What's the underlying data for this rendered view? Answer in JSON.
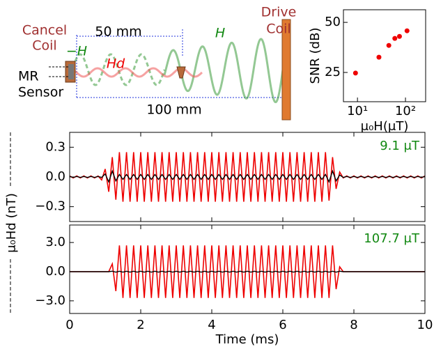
{
  "diagram": {
    "cancel_coil": [
      "Cancel",
      "Coil"
    ],
    "drive_coil": [
      "Drive",
      "Coil"
    ],
    "mr_sensor": [
      "MR",
      "Sensor"
    ],
    "short_distance": "50 mm",
    "long_distance": "100 mm",
    "cancel_field": "−H",
    "detected_field": "Hd",
    "drive_field": "H"
  },
  "shared_ylabel": "μ₀Hd (nT)",
  "chart_data": [
    {
      "type": "scatter",
      "xlabel": "μ₀H(μT)",
      "ylabel": "SNR (dB)",
      "xscale": "log",
      "color": "#ee0000",
      "x": [
        9.1,
        28,
        45,
        60,
        75,
        107.7
      ],
      "values": [
        24.7,
        32.6,
        38.5,
        42,
        43,
        45.8
      ],
      "xlim": [
        5.1,
        263
      ],
      "xticks": [
        {
          "value": 10,
          "label": "10¹"
        },
        {
          "value": 100,
          "label": "10²"
        }
      ],
      "ylim": [
        10.4,
        56.3
      ],
      "yticks": [
        25,
        50
      ]
    },
    {
      "type": "line",
      "annotation": "9.1 μT",
      "annotation_color": "#118811",
      "xlim": [
        0,
        10
      ],
      "ylim": [
        -0.45,
        0.45
      ],
      "yticks": [
        {
          "value": -0.3,
          "label": "−0.3"
        },
        {
          "value": 0,
          "label": "0.0"
        },
        0.3
      ],
      "x": [
        0,
        0.1,
        0.2,
        0.3,
        0.4,
        0.5,
        0.6,
        0.7,
        0.8,
        0.9,
        1,
        1.1,
        1.2,
        1.3,
        1.4,
        1.5,
        1.6,
        1.7,
        1.8,
        1.9,
        2,
        2.1,
        2.2,
        2.3,
        2.4,
        2.5,
        2.6,
        2.7,
        2.8,
        2.9,
        3,
        3.1,
        3.2,
        3.3,
        3.4,
        3.5,
        3.6,
        3.7,
        3.8,
        3.9,
        4,
        4.1,
        4.2,
        4.3,
        4.4,
        4.5,
        4.6,
        4.7,
        4.8,
        4.9,
        5,
        5.1,
        5.2,
        5.3,
        5.4,
        5.5,
        5.6,
        5.7,
        5.8,
        5.9,
        6,
        6.1,
        6.2,
        6.3,
        6.4,
        6.5,
        6.6,
        6.7,
        6.8,
        6.9,
        7,
        7.1,
        7.2,
        7.3,
        7.4,
        7.5,
        7.6,
        7.7,
        7.8,
        7.9,
        8,
        8.1,
        8.2,
        8.3,
        8.4,
        8.5,
        8.6,
        8.7,
        8.8,
        8.9,
        9,
        9.1,
        9.2,
        9.3,
        9.4,
        9.5,
        9.6,
        9.7,
        9.8,
        9.9,
        10
      ],
      "series": [
        {
          "color": "#ee0000",
          "values": [
            0.01,
            -0.01,
            0.01,
            -0.01,
            0.01,
            -0.01,
            0.01,
            -0.01,
            0.01,
            -0.03,
            0.08,
            -0.15,
            0.2,
            -0.23,
            0.25,
            -0.25,
            0.25,
            -0.25,
            0.25,
            -0.25,
            0.25,
            -0.25,
            0.25,
            -0.25,
            0.25,
            -0.25,
            0.25,
            -0.25,
            0.25,
            -0.25,
            0.25,
            -0.25,
            0.25,
            -0.25,
            0.25,
            -0.25,
            0.25,
            -0.25,
            0.25,
            -0.25,
            0.25,
            -0.25,
            0.25,
            -0.25,
            0.25,
            -0.25,
            0.25,
            -0.25,
            0.25,
            -0.25,
            0.25,
            -0.25,
            0.25,
            -0.25,
            0.25,
            -0.25,
            0.25,
            -0.25,
            0.25,
            -0.25,
            0.25,
            -0.25,
            0.25,
            -0.25,
            0.25,
            -0.25,
            0.25,
            -0.25,
            0.25,
            -0.25,
            0.25,
            -0.25,
            0.25,
            -0.24,
            0.2,
            -0.12,
            0.05,
            -0.01,
            0.01,
            -0.01,
            0.01,
            -0.01,
            0.01,
            -0.01,
            0.01,
            -0.01,
            0.01,
            -0.01,
            0.01,
            -0.01,
            0.01,
            -0.01,
            0.01,
            -0.01,
            0.01,
            -0.01,
            0.01,
            -0.01,
            0.01,
            -0.01,
            0.01
          ]
        },
        {
          "color": "#000000",
          "values": [
            0.005,
            -0.005,
            0.005,
            -0.005,
            0.005,
            -0.005,
            0.005,
            -0.005,
            0.005,
            -0.005,
            0.03,
            -0.05,
            0.06,
            -0.04,
            0.025,
            -0.025,
            0.025,
            -0.025,
            0.025,
            -0.025,
            0.025,
            -0.025,
            0.025,
            -0.025,
            0.025,
            -0.025,
            0.025,
            -0.025,
            0.025,
            -0.025,
            0.025,
            -0.025,
            0.025,
            -0.025,
            0.025,
            -0.025,
            0.025,
            -0.025,
            0.025,
            -0.025,
            0.025,
            -0.025,
            0.025,
            -0.025,
            0.025,
            -0.025,
            0.025,
            -0.025,
            0.025,
            -0.025,
            0.025,
            -0.025,
            0.025,
            -0.025,
            0.025,
            -0.025,
            0.025,
            -0.025,
            0.025,
            -0.025,
            0.025,
            -0.025,
            0.025,
            -0.025,
            0.025,
            -0.025,
            0.025,
            -0.025,
            0.025,
            -0.025,
            0.025,
            -0.025,
            0.025,
            -0.05,
            0.06,
            -0.04,
            0.02,
            -0.005,
            0.005,
            -0.005,
            0.005,
            -0.005,
            0.005,
            -0.005,
            0.005,
            -0.005,
            0.005,
            -0.005,
            0.005,
            -0.005,
            0.005,
            -0.005,
            0.005,
            -0.005,
            0.005,
            -0.005,
            0.005,
            -0.005,
            0.005,
            -0.005,
            0.005
          ]
        }
      ]
    },
    {
      "type": "line",
      "annotation": "107.7 μT",
      "annotation_color": "#118811",
      "xlabel": "Time (ms)",
      "xlim": [
        0,
        10
      ],
      "xticks": [
        0,
        2,
        4,
        6,
        8,
        10
      ],
      "ylim": [
        -4.3,
        4.8
      ],
      "yticks": [
        {
          "value": -3,
          "label": "−3.0"
        },
        {
          "value": 0,
          "label": "0.0"
        },
        {
          "value": 3,
          "label": "3.0"
        }
      ],
      "x": [
        0,
        0.1,
        0.2,
        0.3,
        0.4,
        0.5,
        0.6,
        0.7,
        0.8,
        0.9,
        1,
        1.1,
        1.2,
        1.3,
        1.4,
        1.5,
        1.6,
        1.7,
        1.8,
        1.9,
        2,
        2.1,
        2.2,
        2.3,
        2.4,
        2.5,
        2.6,
        2.7,
        2.8,
        2.9,
        3,
        3.1,
        3.2,
        3.3,
        3.4,
        3.5,
        3.6,
        3.7,
        3.8,
        3.9,
        4,
        4.1,
        4.2,
        4.3,
        4.4,
        4.5,
        4.6,
        4.7,
        4.8,
        4.9,
        5,
        5.1,
        5.2,
        5.3,
        5.4,
        5.5,
        5.6,
        5.7,
        5.8,
        5.9,
        6,
        6.1,
        6.2,
        6.3,
        6.4,
        6.5,
        6.6,
        6.7,
        6.8,
        6.9,
        7,
        7.1,
        7.2,
        7.3,
        7.4,
        7.5,
        7.6,
        7.7,
        7.8,
        7.9,
        8,
        8.1,
        8.2,
        8.3,
        8.4,
        8.5,
        8.6,
        8.7,
        8.8,
        8.9,
        9,
        9.1,
        9.2,
        9.3,
        9.4,
        9.5,
        9.6,
        9.7,
        9.8,
        9.9,
        10
      ],
      "series": [
        {
          "color": "#ee0000",
          "values": [
            0,
            0,
            0,
            0,
            0,
            0,
            0,
            0,
            0,
            0,
            0,
            0,
            0.8,
            -2,
            2.7,
            -2.7,
            2.7,
            -2.7,
            2.7,
            -2.7,
            2.7,
            -2.7,
            2.7,
            -2.7,
            2.7,
            -2.7,
            2.7,
            -2.7,
            2.7,
            -2.7,
            2.7,
            -2.7,
            2.7,
            -2.7,
            2.7,
            -2.7,
            2.7,
            -2.7,
            2.7,
            -2.7,
            2.7,
            -2.7,
            2.7,
            -2.7,
            2.7,
            -2.7,
            2.7,
            -2.7,
            2.7,
            -2.7,
            2.7,
            -2.7,
            2.7,
            -2.7,
            2.7,
            -2.7,
            2.7,
            -2.7,
            2.7,
            -2.7,
            2.7,
            -2.7,
            2.7,
            -2.7,
            2.7,
            -2.7,
            2.7,
            -2.7,
            2.7,
            -2.7,
            2.7,
            -2.7,
            2.7,
            -2.7,
            2.7,
            -1.8,
            0.5,
            0,
            0,
            0,
            0,
            0,
            0,
            0,
            0,
            0,
            0,
            0,
            0,
            0,
            0,
            0,
            0,
            0,
            0,
            0,
            0,
            0,
            0,
            0,
            0
          ]
        },
        {
          "color": "#000000",
          "values": [
            0,
            0,
            0,
            0,
            0,
            0,
            0,
            0,
            0,
            0,
            0,
            0,
            0.05,
            -0.05,
            0.05,
            -0.05,
            0.05,
            -0.05,
            0.05,
            -0.05,
            0.05,
            -0.05,
            0.05,
            -0.05,
            0.05,
            -0.05,
            0.05,
            -0.05,
            0.05,
            -0.05,
            0.05,
            -0.05,
            0.05,
            -0.05,
            0.05,
            -0.05,
            0.05,
            -0.05,
            0.05,
            -0.05,
            0.05,
            -0.05,
            0.05,
            -0.05,
            0.05,
            -0.05,
            0.05,
            -0.05,
            0.05,
            -0.05,
            0.05,
            -0.05,
            0.05,
            -0.05,
            0.05,
            -0.05,
            0.05,
            -0.05,
            0.05,
            -0.05,
            0.05,
            -0.05,
            0.05,
            -0.05,
            0.05,
            -0.05,
            0.05,
            -0.05,
            0.05,
            -0.05,
            0.05,
            -0.05,
            0.05,
            -0.05,
            0.05,
            -0.05,
            0.05,
            0,
            0,
            0,
            0,
            0,
            0,
            0,
            0,
            0,
            0,
            0,
            0,
            0,
            0,
            0,
            0,
            0,
            0,
            0,
            0,
            0,
            0,
            0,
            0
          ]
        }
      ]
    }
  ]
}
